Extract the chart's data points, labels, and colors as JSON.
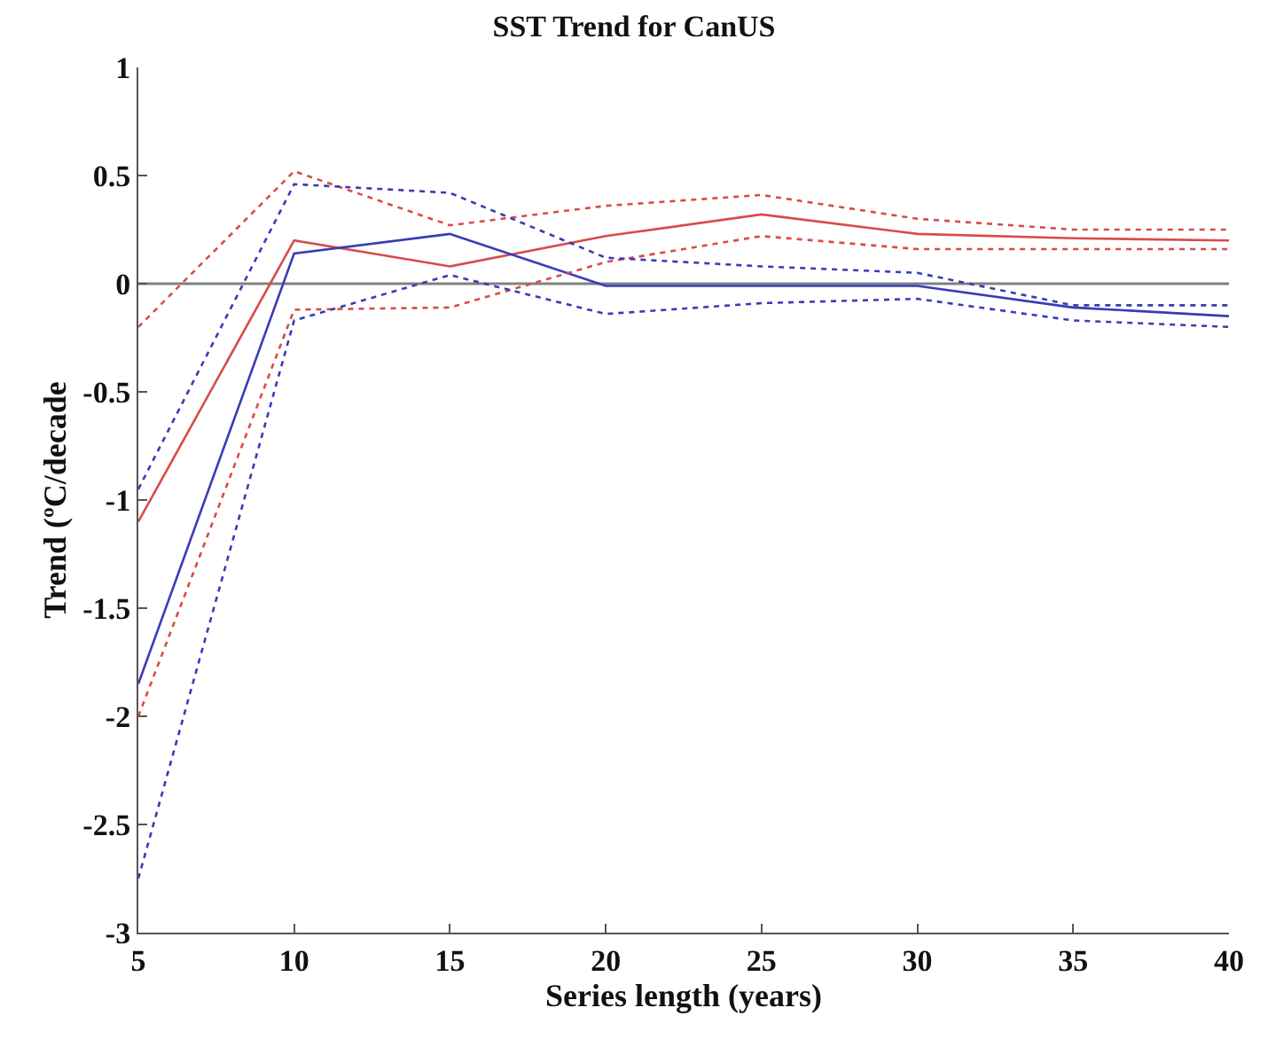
{
  "chart_data": {
    "type": "line",
    "title": "SST Trend for CanUS",
    "xlabel": "Series length (years)",
    "ylabel": "Trend (ºC/decade",
    "x": [
      5,
      10,
      15,
      20,
      25,
      30,
      35,
      40
    ],
    "series": [
      {
        "color": "#d94a4a",
        "line_style": "solid",
        "values": [
          -1.1,
          0.2,
          0.08,
          0.22,
          0.32,
          0.23,
          0.21,
          0.2
        ]
      },
      {
        "color": "#3a3ab8",
        "line_style": "solid",
        "values": [
          -1.85,
          0.14,
          0.23,
          -0.01,
          -0.01,
          -0.01,
          -0.11,
          -0.15
        ]
      },
      {
        "color": "#d94a4a",
        "line_style": "dotted",
        "values": [
          -0.2,
          0.52,
          0.27,
          0.36,
          0.41,
          0.3,
          0.25,
          0.25
        ]
      },
      {
        "color": "#d94a4a",
        "line_style": "dotted",
        "values": [
          -2.0,
          -0.12,
          -0.11,
          0.1,
          0.22,
          0.16,
          0.16,
          0.16
        ]
      },
      {
        "color": "#3a3ab8",
        "line_style": "dotted",
        "values": [
          -0.95,
          0.46,
          0.42,
          0.12,
          0.08,
          0.05,
          -0.1,
          -0.1
        ]
      },
      {
        "color": "#3a3ab8",
        "line_style": "dotted",
        "values": [
          -2.75,
          -0.17,
          0.04,
          -0.14,
          -0.09,
          -0.07,
          -0.17,
          -0.2
        ]
      }
    ],
    "xlim": [
      5,
      40
    ],
    "xticks": [
      5,
      10,
      15,
      20,
      25,
      30,
      35,
      40
    ],
    "ylim": [
      -3,
      1
    ],
    "yticks": [
      -3,
      -2.5,
      -2,
      -1.5,
      -1,
      -0.5,
      0,
      0.5,
      1
    ],
    "ref_lines": [
      {
        "axis": "y",
        "value": 0,
        "color": "#808080"
      }
    ],
    "grid": false,
    "marker": "none"
  }
}
